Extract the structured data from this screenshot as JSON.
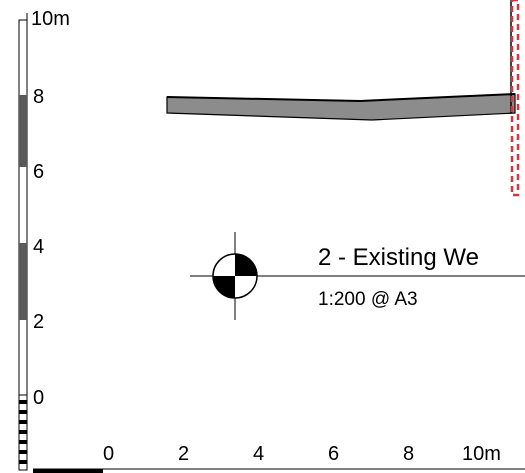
{
  "vertical_scale": {
    "top_label": "10m",
    "tick_labels": [
      "8",
      "6",
      "4",
      "2",
      "0"
    ]
  },
  "horizontal_scale": {
    "tick_labels": [
      "0",
      "2",
      "4",
      "6",
      "8",
      "10m"
    ]
  },
  "view": {
    "title": "2 - Existing We",
    "scale_note": "1:200 @ A3"
  },
  "colors": {
    "roof_fill": "#8c8c8c",
    "scale_dark": "#5a5a5a",
    "dashed_line": "#d9333f"
  }
}
